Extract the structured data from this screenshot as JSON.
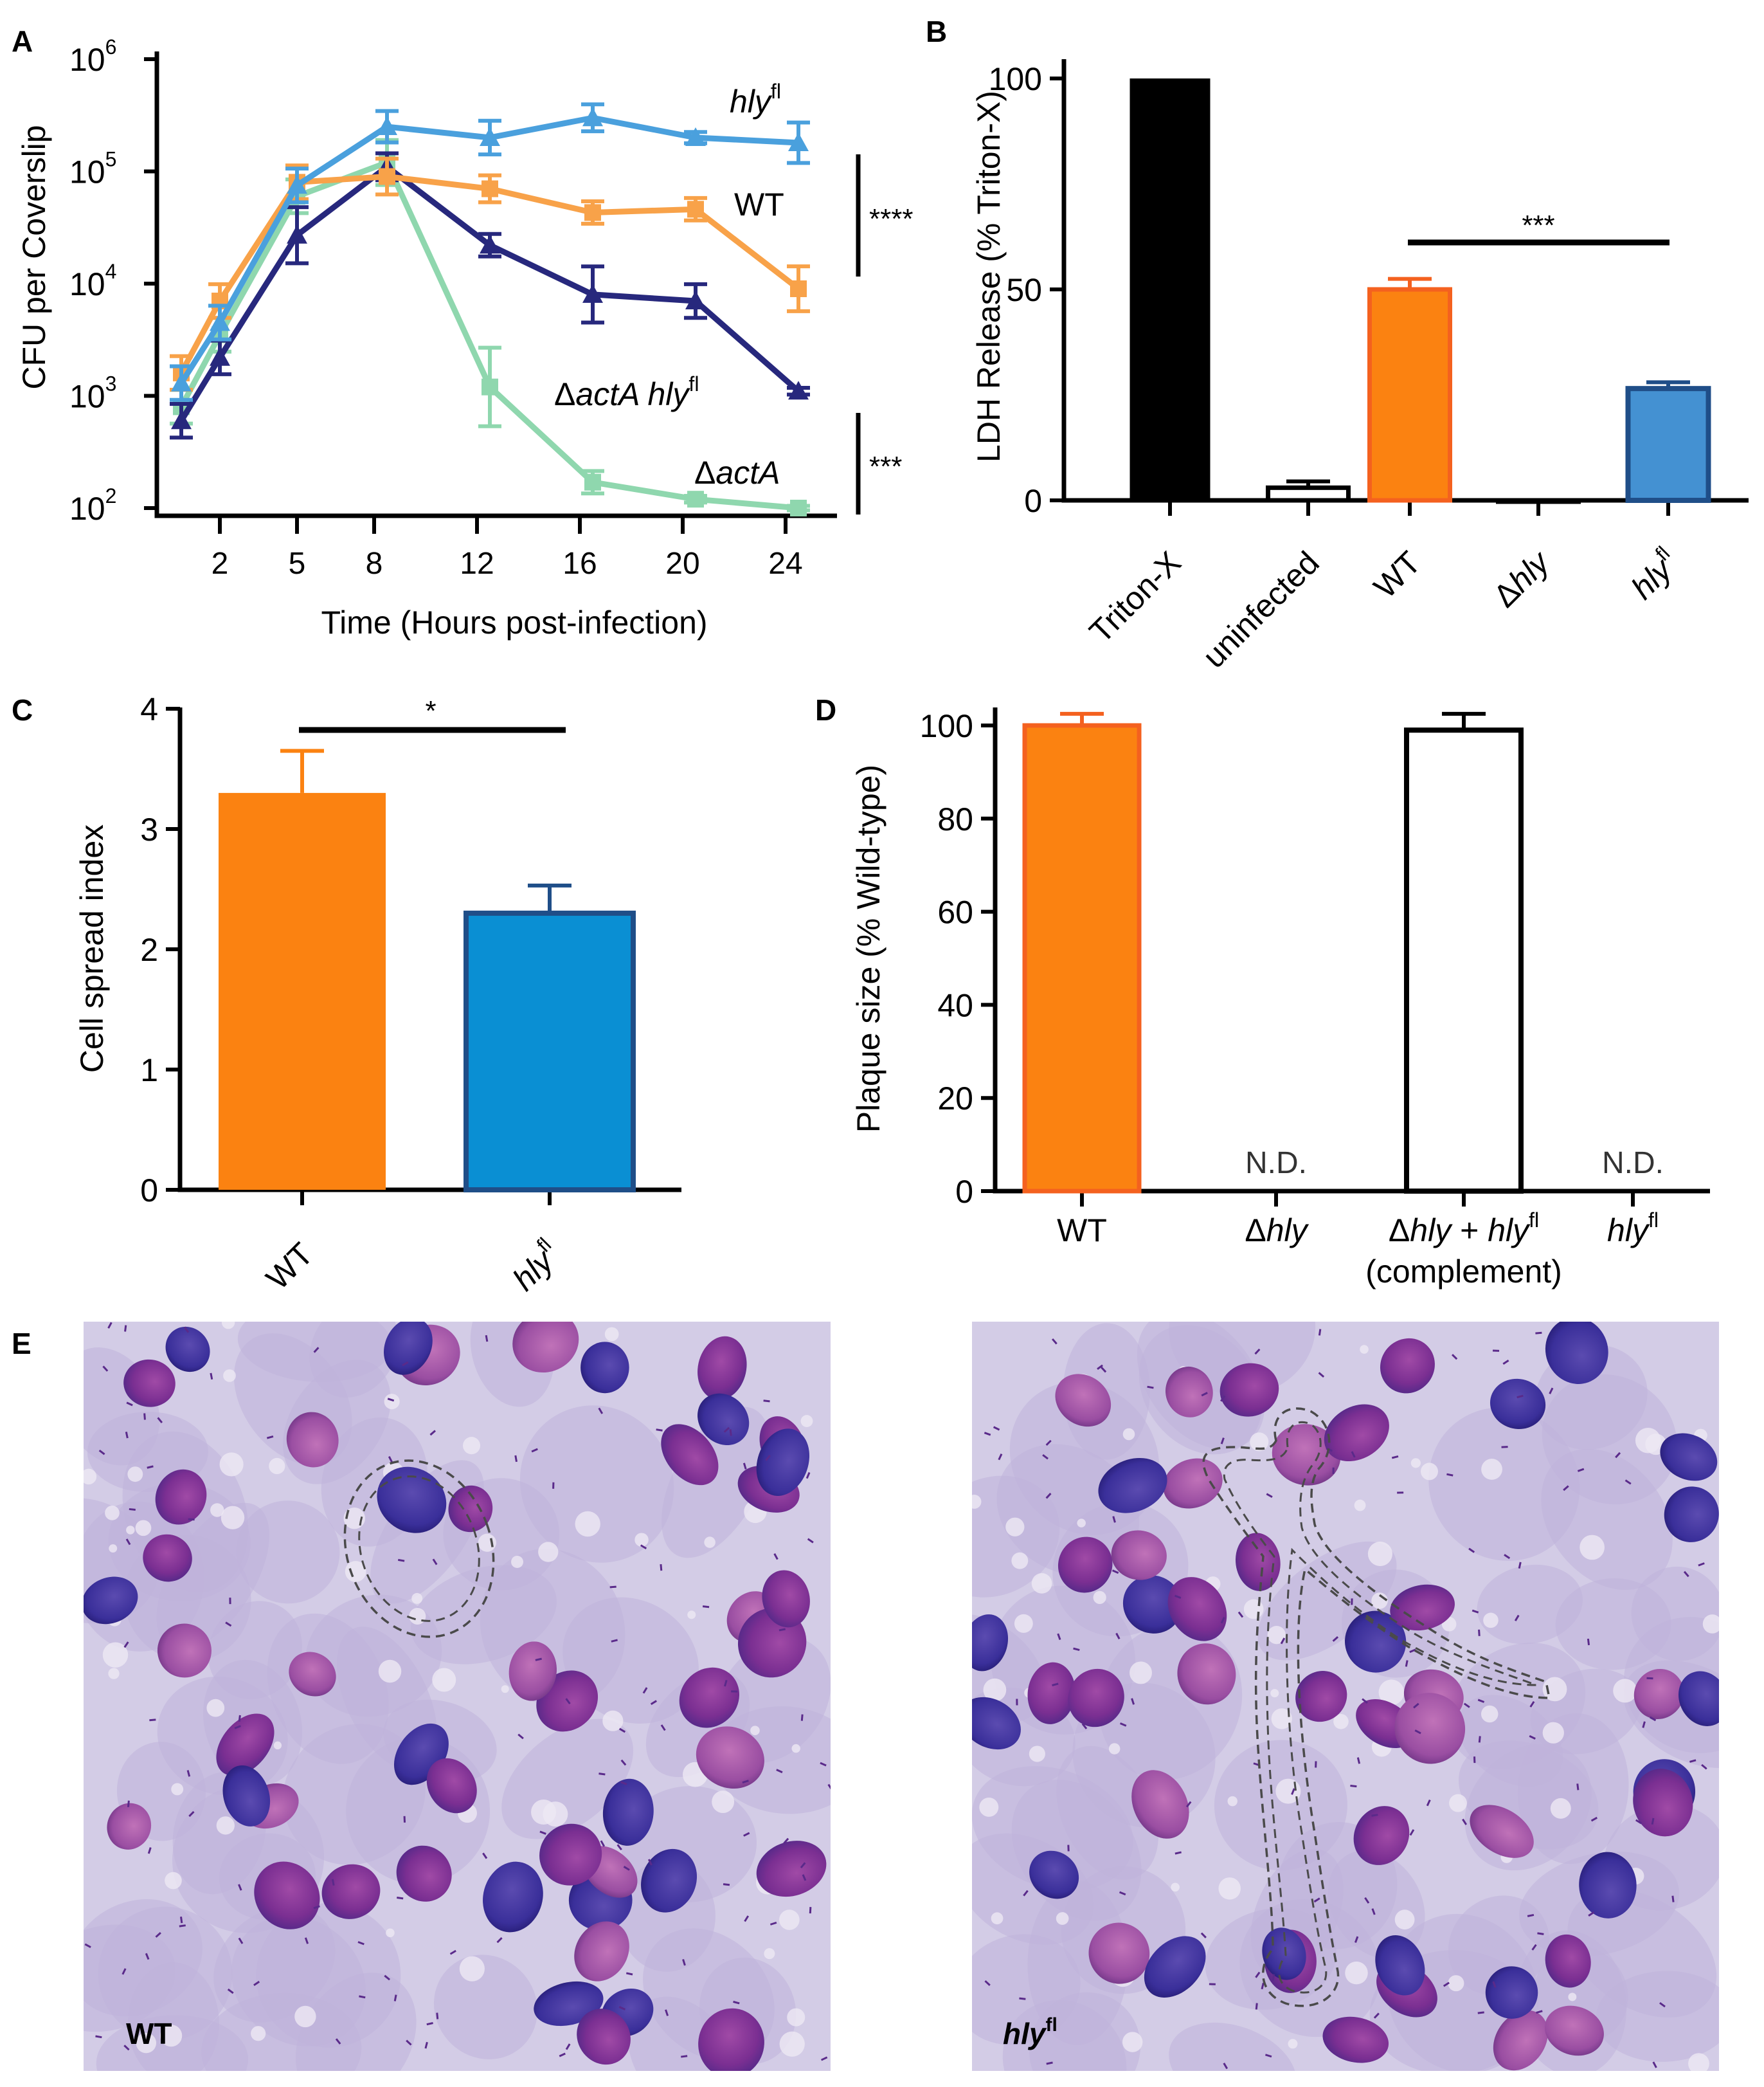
{
  "colors": {
    "hly_fl": "#4aa0dd",
    "wt": "#f8a249",
    "actA_hly_fl": "#27287d",
    "actA": "#8fd7ae",
    "triton": "#000000",
    "orange_bar": "#fb8211",
    "orange_edge": "#f4611f",
    "blue_bar": "#4491d2",
    "blue_edge": "#1f4e88",
    "blue_bar_c": "#0a8fd3"
  },
  "panels": {
    "a": {
      "label": "A"
    },
    "b": {
      "label": "B"
    },
    "c": {
      "label": "C"
    },
    "d": {
      "label": "D"
    },
    "e": {
      "label": "E"
    }
  },
  "chart_data": [
    {
      "panel": "A",
      "type": "line",
      "xlabel": "Time (Hours post-infection)",
      "ylabel": "CFU per Coverslip",
      "yscale": "log",
      "ylim": [
        100,
        1000000
      ],
      "xlim": [
        0,
        26
      ],
      "x_ticks": [
        2,
        5,
        8,
        12,
        16,
        20,
        24
      ],
      "y_tick_labels": [
        {
          "base": "10",
          "exp": "2",
          "value": 100
        },
        {
          "base": "10",
          "exp": "3",
          "value": 1000
        },
        {
          "base": "10",
          "exp": "4",
          "value": 10000
        },
        {
          "base": "10",
          "exp": "5",
          "value": 100000
        },
        {
          "base": "10",
          "exp": "6",
          "value": 1000000
        }
      ],
      "series": [
        {
          "key": "hly_fl",
          "name": "hly fl",
          "marker": "triangle",
          "x": [
            0.5,
            2,
            5,
            8.5,
            12.5,
            16.5,
            20.5,
            24.5
          ],
          "y": [
            1300,
            4500,
            75000,
            250000,
            200000,
            300000,
            200000,
            180000
          ],
          "err": [
            0.15,
            0.15,
            0.15,
            0.14,
            0.15,
            0.12,
            0.05,
            0.18
          ]
        },
        {
          "key": "wt",
          "name": "WT",
          "marker": "square",
          "x": [
            0.5,
            2,
            5,
            8.5,
            12.5,
            16.5,
            20.5,
            24.5
          ],
          "y": [
            1600,
            7000,
            80000,
            90000,
            70000,
            43000,
            46000,
            9000
          ],
          "err": [
            0.15,
            0.15,
            0.15,
            0.16,
            0.12,
            0.1,
            0.1,
            0.2
          ]
        },
        {
          "key": "actA_hly_fl",
          "name": "ΔactA hly fl",
          "marker": "triangle",
          "x": [
            0.5,
            2,
            5,
            8.5,
            12.5,
            16.5,
            20.5,
            24.5
          ],
          "y": [
            600,
            2200,
            27000,
            110000,
            22000,
            8000,
            7000,
            1100
          ],
          "err": [
            0.15,
            0.15,
            0.25,
            0.12,
            0.1,
            0.25,
            0.15,
            0.03
          ]
        },
        {
          "key": "actA",
          "name": "ΔactA",
          "marker": "square",
          "x": [
            0.5,
            2,
            5,
            8.5,
            12.5,
            16.5,
            20.5,
            24.5
          ],
          "y": [
            800,
            3500,
            60000,
            120000,
            1200,
            170,
            120,
            100
          ],
          "err": [
            0.15,
            0.15,
            0.15,
            0.2,
            0.35,
            0.1,
            0.03,
            0.02
          ]
        }
      ],
      "labels": {
        "hly_fl": {
          "base": "hly",
          "sup": "fl"
        },
        "wt": {
          "text": "WT"
        },
        "actA_hly_fl": {
          "delta": "Δ",
          "italic1": "actA hly",
          "sup": "fl"
        },
        "actA": {
          "delta": "Δ",
          "italic": "actA"
        }
      },
      "annotations": [
        {
          "text": "****",
          "between": [
            "hly_fl",
            "wt"
          ]
        },
        {
          "text": "***",
          "between": [
            "actA_hly_fl",
            "actA"
          ]
        }
      ]
    },
    {
      "panel": "B",
      "type": "bar",
      "ylabel": "LDH Release (% Triton-X)",
      "ylim": [
        0,
        100
      ],
      "y_ticks": [
        0,
        50,
        100
      ],
      "categories": [
        "Triton-X",
        "uninfected",
        "WT",
        "Δhly",
        "hly fl"
      ],
      "category_parts": [
        {
          "plain": "Triton-X"
        },
        {
          "plain": "uninfected"
        },
        {
          "plain": "WT"
        },
        {
          "delta": "Δ",
          "italic": "hly"
        },
        {
          "italic": "hly",
          "sup": "fl"
        }
      ],
      "values": [
        100,
        3,
        50,
        0,
        26.5
      ],
      "errors": [
        0,
        1.5,
        2.5,
        0,
        1.5
      ],
      "annotations": [
        {
          "text": "***",
          "from": "WT",
          "to": "hly fl"
        }
      ]
    },
    {
      "panel": "C",
      "type": "bar",
      "ylabel": "Cell spread index",
      "ylim": [
        0,
        4
      ],
      "y_ticks": [
        0,
        1,
        2,
        3,
        4
      ],
      "categories": [
        "WT",
        "hly fl"
      ],
      "category_parts": [
        {
          "plain": "WT"
        },
        {
          "italic": "hly",
          "sup": "fl"
        }
      ],
      "values": [
        3.3,
        2.3
      ],
      "errors": [
        0.35,
        0.23
      ],
      "annotations": [
        {
          "text": "*",
          "from": "WT",
          "to": "hly fl"
        }
      ]
    },
    {
      "panel": "D",
      "type": "bar",
      "ylabel": "Plaque size (% Wild-type)",
      "ylim": [
        0,
        100
      ],
      "y_ticks": [
        0,
        20,
        40,
        60,
        80,
        100
      ],
      "categories": [
        "WT",
        "Δhly",
        "Δhly + hly fl (complement)",
        "hly fl"
      ],
      "category_parts": [
        {
          "plain": "WT"
        },
        {
          "delta": "Δ",
          "italic": "hly"
        },
        {
          "delta": "Δ",
          "italic": "hly",
          "plus": " + ",
          "italic2": "hly",
          "sup": "fl",
          "line2": "(complement)"
        },
        {
          "italic": "hly",
          "sup": "fl"
        }
      ],
      "values": [
        100,
        null,
        99,
        null
      ],
      "errors": [
        2.5,
        null,
        3.5,
        null
      ],
      "nd_label": "N.D."
    }
  ],
  "micrographs": {
    "left": {
      "label": "WT"
    },
    "right": {
      "label_base": "hly",
      "label_sup": "fl"
    }
  }
}
